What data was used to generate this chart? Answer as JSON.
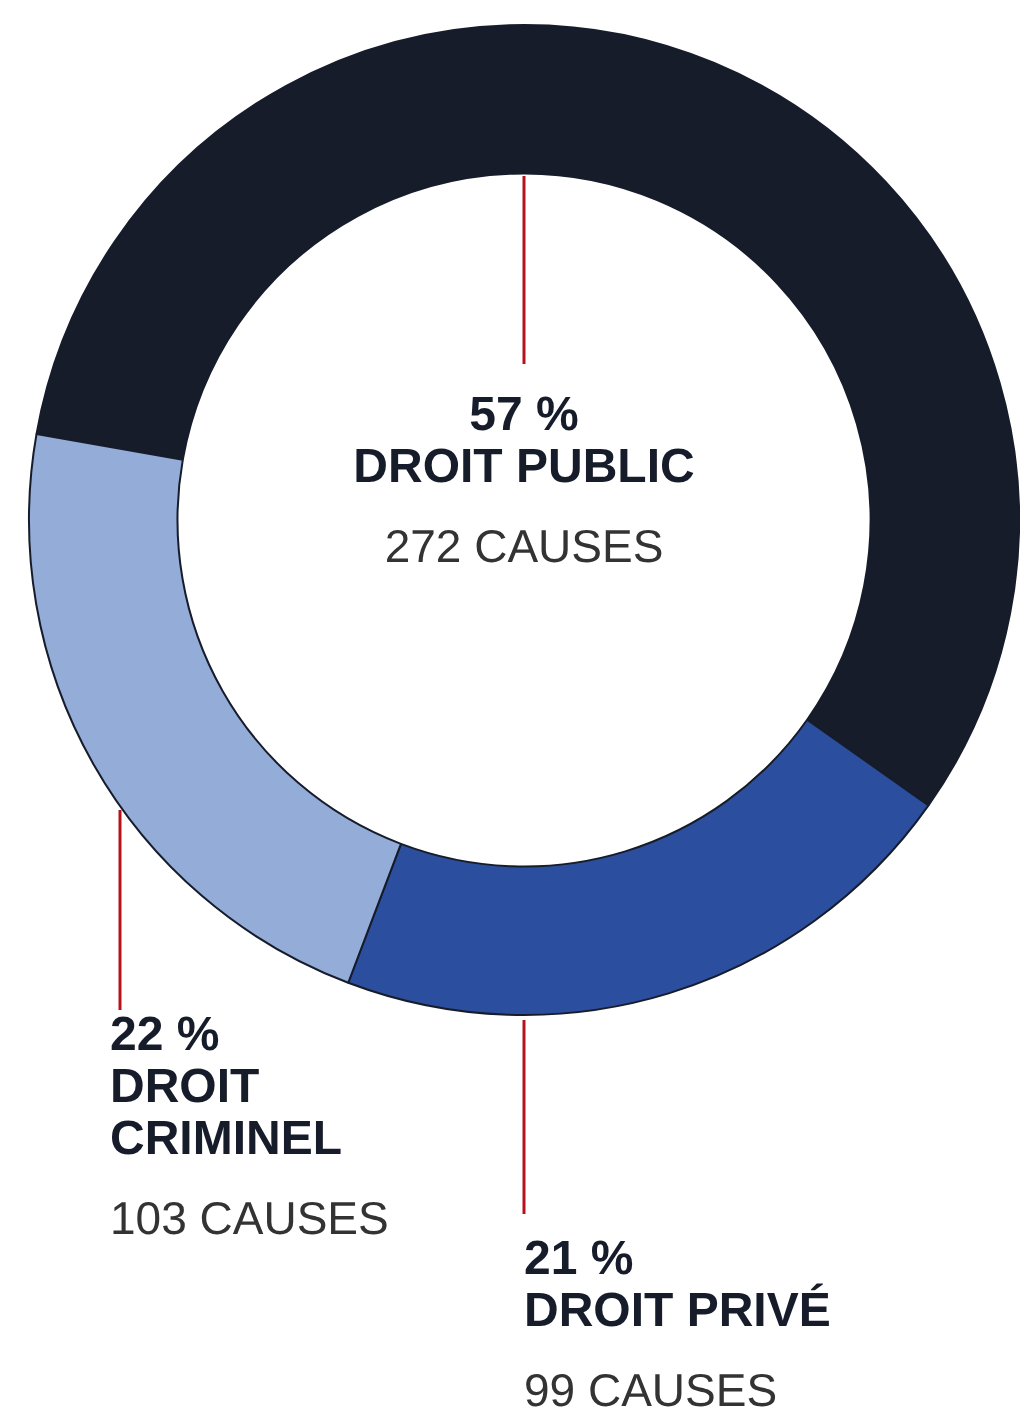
{
  "chart_data": {
    "type": "donut",
    "categories": [
      "DROIT PUBLIC",
      "DROIT PRIVÉ",
      "DROIT CRIMINEL"
    ],
    "values": [
      57,
      21,
      22
    ],
    "colors": [
      "#161c2a",
      "#2b4f9e",
      "#93acd8"
    ],
    "value_labels": [
      "57 %",
      "21 %",
      "22 %"
    ],
    "annotations": [
      "272 CAUSES",
      "99 CAUSES",
      "103 CAUSES"
    ],
    "legend": false
  }
}
